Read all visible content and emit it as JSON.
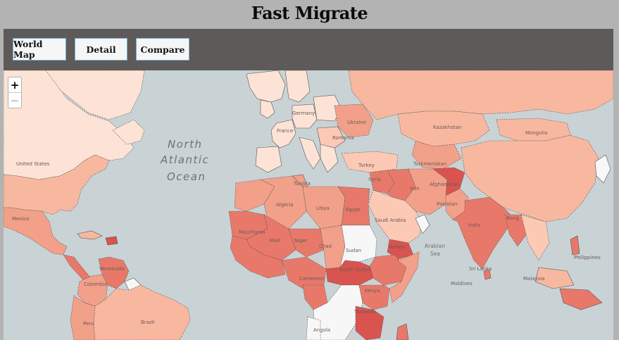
{
  "app": {
    "title": "Fast Migrate"
  },
  "nav": {
    "world_map": "World Map",
    "detail": "Detail",
    "compare": "Compare"
  },
  "zoom": {
    "in": "+",
    "out": "−"
  },
  "map": {
    "ocean_label_line1": "North",
    "ocean_label_line2": "Atlantic",
    "ocean_label_line3": "Ocean",
    "sea_arabian_1": "Arabian",
    "sea_arabian_2": "Sea",
    "labels": {
      "united_states": "United States",
      "mexico": "Mexico",
      "germany": "Germany",
      "france": "France",
      "ukraine": "Ukraine",
      "kazakhstan": "Kazakhstan",
      "mongolia": "Mongolia",
      "romania": "Romania",
      "turkey": "Turkey",
      "turkmenistan": "Turkmenistan",
      "syria": "Syria",
      "afghanistan": "Afghanistan",
      "iran": "Iran",
      "pakistan": "Pakistan",
      "tunisia": "Tunisia",
      "algeria": "Algeria",
      "libya": "Libya",
      "egypt": "Egypt",
      "saudi_arabia": "Saudi Arabia",
      "india": "India",
      "mauritania": "Mauritania",
      "mali": "Mali",
      "niger": "Niger",
      "chad": "Chad",
      "sudan": "Sudan",
      "yemen": "Yemen",
      "south_sudan": "South Sudan",
      "venezuela": "Venezuela",
      "colombia": "Colombia",
      "cameroon": "Cameroon",
      "kenya": "Kenya",
      "tanzania": "Tanzania",
      "angola": "Angola",
      "brazil": "Brazil",
      "peru": "Peru",
      "maldives": "Maldives",
      "sri_lanka": "Sri Lanka",
      "philippines": "Philippines",
      "malaysia": "Malaysia",
      "bangladesh": "Bang"
    }
  },
  "colors": {
    "ocean": "#c9d3d6",
    "very_light": "#fde3d6",
    "light": "#f8b8a0",
    "medium": "#f2a089",
    "strong": "#e8796a",
    "dark": "#d9534f",
    "no_data": "#f7f7f7"
  }
}
